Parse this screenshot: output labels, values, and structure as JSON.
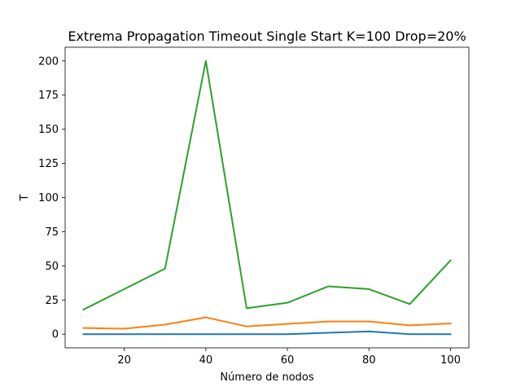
{
  "chart_data": {
    "type": "line",
    "title": "Extrema Propagation Timeout Single Start K=100 Drop=20%",
    "xlabel": "Número de nodos",
    "ylabel": "T",
    "x": [
      10,
      20,
      30,
      40,
      50,
      60,
      70,
      80,
      90,
      100
    ],
    "xlim": [
      5.5,
      104.5
    ],
    "ylim": [
      -10,
      210
    ],
    "xticks": [
      20,
      40,
      60,
      80,
      100
    ],
    "yticks": [
      0,
      25,
      50,
      75,
      100,
      125,
      150,
      175,
      200
    ],
    "grid": false,
    "series": [
      {
        "color": "#1f77b4",
        "values": [
          0,
          0,
          0,
          0,
          0,
          0,
          1,
          2,
          0,
          0
        ]
      },
      {
        "color": "#ff7f0e",
        "values": [
          4.5,
          4,
          7,
          12.3,
          5.7,
          7.5,
          9.3,
          9.3,
          6.5,
          7.8
        ]
      },
      {
        "color": "#2ca02c",
        "values": [
          18,
          33,
          48,
          200,
          19,
          23,
          35,
          33,
          22,
          54
        ]
      }
    ]
  }
}
